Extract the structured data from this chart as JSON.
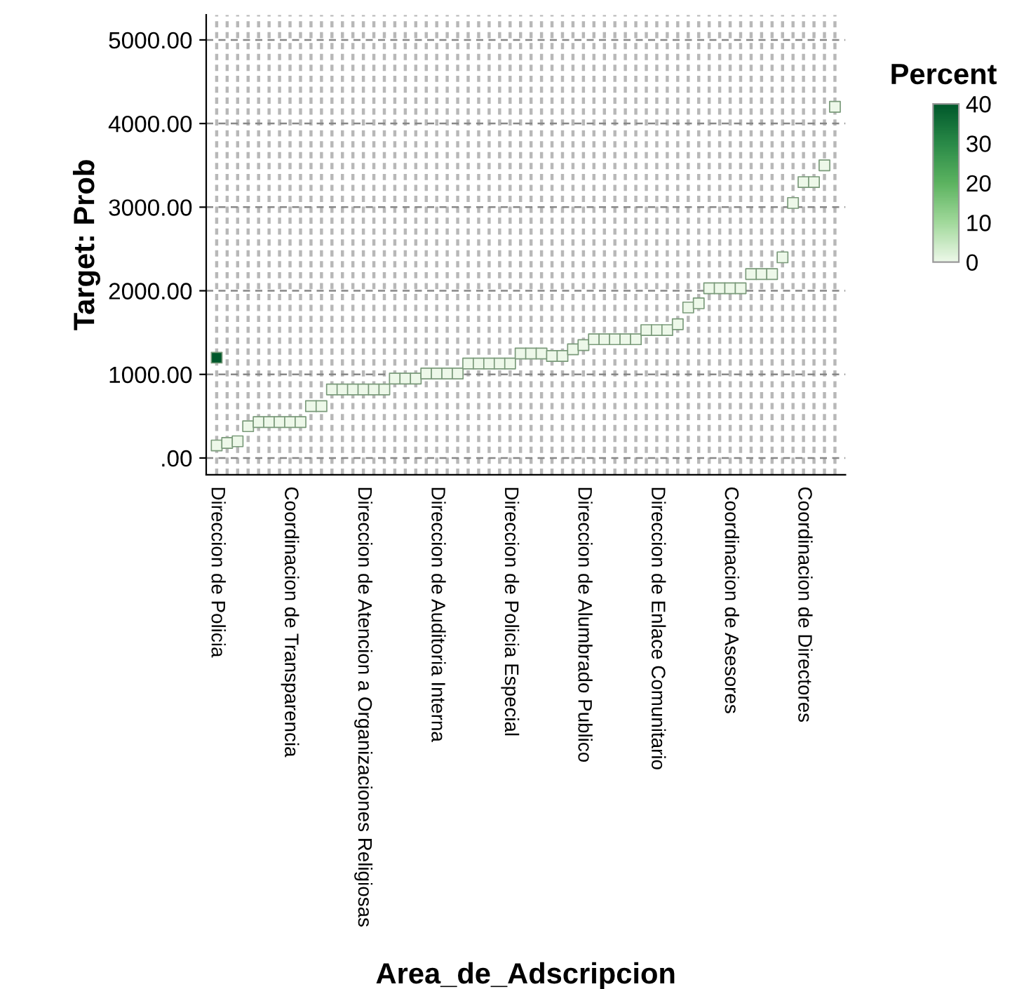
{
  "chart_data": {
    "type": "scatter",
    "xlabel": "Area_de_Adscripcion",
    "ylabel": "Target: Prob",
    "clabel": "Percent",
    "categories": [
      "Direccion de Policia",
      null,
      null,
      null,
      null,
      null,
      null,
      "Coordinacion de Transparencia",
      null,
      null,
      null,
      null,
      null,
      null,
      "Direccion de Atencion a Organizaciones Religiosas",
      null,
      null,
      null,
      null,
      null,
      null,
      "Direccion de Auditoria Interna",
      null,
      null,
      null,
      null,
      null,
      null,
      "Direccion de Policia Especial",
      null,
      null,
      null,
      null,
      null,
      null,
      "Direccion de Alumbrado Publico",
      null,
      null,
      null,
      null,
      null,
      null,
      "Direccion de Enlace Comunitario",
      null,
      null,
      null,
      null,
      null,
      null,
      "Coordinacion de Asesores",
      null,
      null,
      null,
      null,
      null,
      null,
      "Coordinacion de Directores",
      null,
      null,
      null
    ],
    "series": [
      {
        "values": [
          150,
          180,
          200,
          380,
          430,
          430,
          430,
          430,
          430,
          620,
          620,
          820,
          820,
          820,
          820,
          820,
          820,
          950,
          950,
          950,
          1010,
          1010,
          1010,
          1010,
          1130,
          1130,
          1130,
          1130,
          1130,
          1250,
          1250,
          1250,
          1220,
          1220,
          1300,
          1350,
          1420,
          1420,
          1420,
          1420,
          1420,
          1530,
          1530,
          1530,
          1600,
          1800,
          1850,
          2030,
          2030,
          2030,
          2030,
          2200,
          2200,
          2200,
          2400,
          3050,
          3300,
          3300,
          3500,
          4200
        ],
        "cvalues": [
          0,
          0,
          0,
          0,
          0,
          0,
          0,
          0,
          0,
          0,
          0,
          0,
          0,
          0,
          0,
          0,
          0,
          0,
          0,
          0,
          0,
          0,
          0,
          0,
          0,
          0,
          0,
          0,
          0,
          0,
          0,
          0,
          0,
          0,
          0,
          0,
          0,
          0,
          0,
          0,
          0,
          0,
          0,
          0,
          0,
          0,
          0,
          0,
          0,
          0,
          0,
          0,
          0,
          0,
          0,
          0,
          0,
          0,
          0,
          0
        ]
      },
      {
        "values": [
          1200,
          null,
          null,
          null,
          null,
          null,
          null,
          null,
          null,
          null,
          null,
          null,
          null,
          null,
          null,
          null,
          null,
          null,
          null,
          null,
          null,
          null,
          null,
          null,
          null,
          null,
          null,
          null,
          null,
          null,
          null,
          null,
          null,
          null,
          null,
          null,
          null,
          null,
          null,
          null,
          null,
          null,
          null,
          null,
          null,
          null,
          null,
          null,
          null,
          null,
          null,
          null,
          null,
          null,
          null,
          null,
          null,
          null,
          null,
          null
        ],
        "cvalues": [
          40,
          null,
          null,
          null,
          null,
          null,
          null,
          null,
          null,
          null,
          null,
          null,
          null,
          null,
          null,
          null,
          null,
          null,
          null,
          null,
          null,
          null,
          null,
          null,
          null,
          null,
          null,
          null,
          null,
          null,
          null,
          null,
          null,
          null,
          null,
          null,
          null,
          null,
          null,
          null,
          null,
          null,
          null,
          null,
          null,
          null,
          null,
          null,
          null,
          null,
          null,
          null,
          null,
          null,
          null,
          null,
          null,
          null,
          null,
          null
        ]
      }
    ],
    "colors": [
      "#edf8e9",
      "#a1d99b",
      "#5cb360",
      "#2a8a48",
      "#00582b"
    ],
    "clim": [
      0,
      40
    ],
    "cticks": [
      0,
      10,
      20,
      30,
      40
    ],
    "ylim": [
      -200,
      5300
    ],
    "yticks": [
      {
        "value": 0,
        "label": ".00"
      },
      {
        "value": 1000,
        "label": "1000.00"
      },
      {
        "value": 2000,
        "label": "2000.00"
      },
      {
        "value": 3000,
        "label": "3000.00"
      },
      {
        "value": 4000,
        "label": "4000.00"
      },
      {
        "value": 5000,
        "label": "5000.00"
      }
    ],
    "grid": true,
    "marker": "square"
  }
}
